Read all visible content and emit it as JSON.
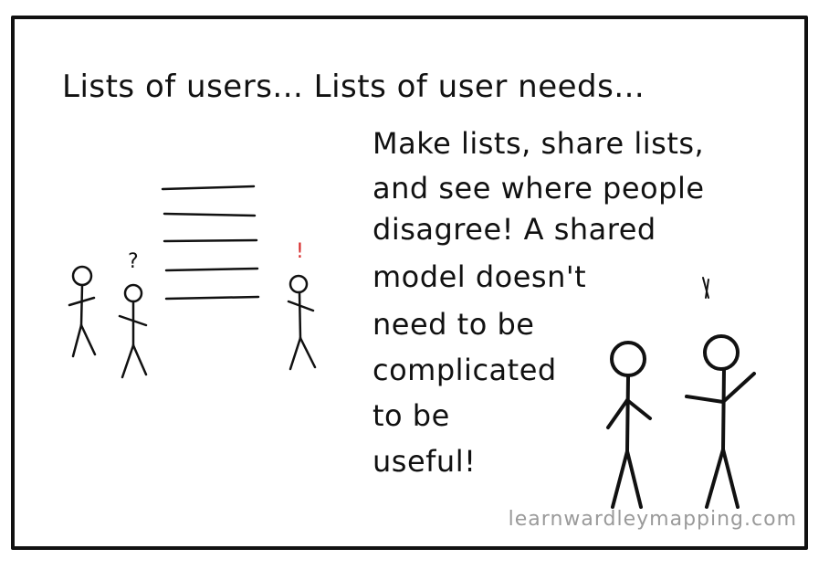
{
  "panel": {
    "headline": "Lists of users... Lists of user needs...",
    "body_lines": [
      "Make lists, share lists,",
      "and see where people",
      "disagree! A shared",
      "model doesn't",
      "need to be",
      "complicated",
      "to be",
      "useful!"
    ],
    "question_mark": "?",
    "exclamation_mark": "!",
    "watermark": "learnwardleymapping.com"
  },
  "colors": {
    "ink": "#111111",
    "accent_exclamation": "#d62828",
    "watermark": "#9a9a9a"
  }
}
